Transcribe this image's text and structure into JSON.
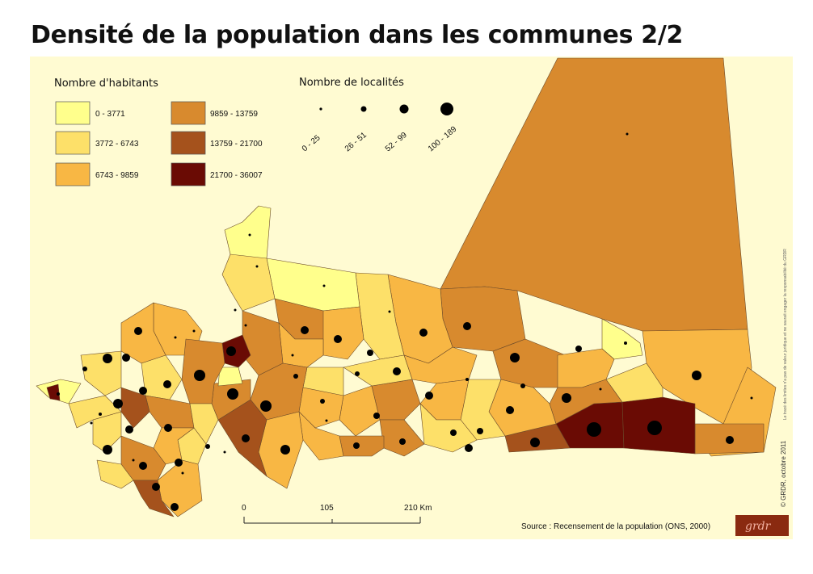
{
  "title": "Densité de la population dans les communes 2/2",
  "colors": {
    "background": "#fffbd2",
    "class_1": "#ffff8c",
    "class_2": "#fde069",
    "class_3": "#f8b744",
    "class_4": "#d88a2e",
    "class_5": "#a5521c",
    "class_6": "#6a0b04",
    "dot": "#000000",
    "border": "#6b4a2a"
  },
  "legend_population": {
    "heading": "Nombre d'habitants",
    "classes": [
      {
        "label": "0 - 3771",
        "color": "#ffff8c"
      },
      {
        "label": "3772 - 6743",
        "color": "#fde069"
      },
      {
        "label": "6743 - 9859",
        "color": "#f8b744"
      },
      {
        "label": "9859 - 13759",
        "color": "#d88a2e"
      },
      {
        "label": "13759 - 21700",
        "color": "#a5521c"
      },
      {
        "label": "21700 - 36007",
        "color": "#6a0b04"
      }
    ]
  },
  "legend_localities": {
    "heading": "Nombre de localités",
    "classes": [
      {
        "label": "0 - 25"
      },
      {
        "label": "26 - 51"
      },
      {
        "label": "52 - 99"
      },
      {
        "label": "100 - 189"
      }
    ]
  },
  "scale_bar": {
    "ticks": [
      "0",
      "105",
      "210 Km"
    ]
  },
  "source": "Source : Recensement de la population (ONS, 2000)",
  "credit": "© GRDR, octobre 2011",
  "disclaimer": "Le tracé des limites n'a pas de valeur juridique et ne saurait engager la responsabilité du GRDR",
  "logo_text": "grdr",
  "legend_layout": "top-left"
}
